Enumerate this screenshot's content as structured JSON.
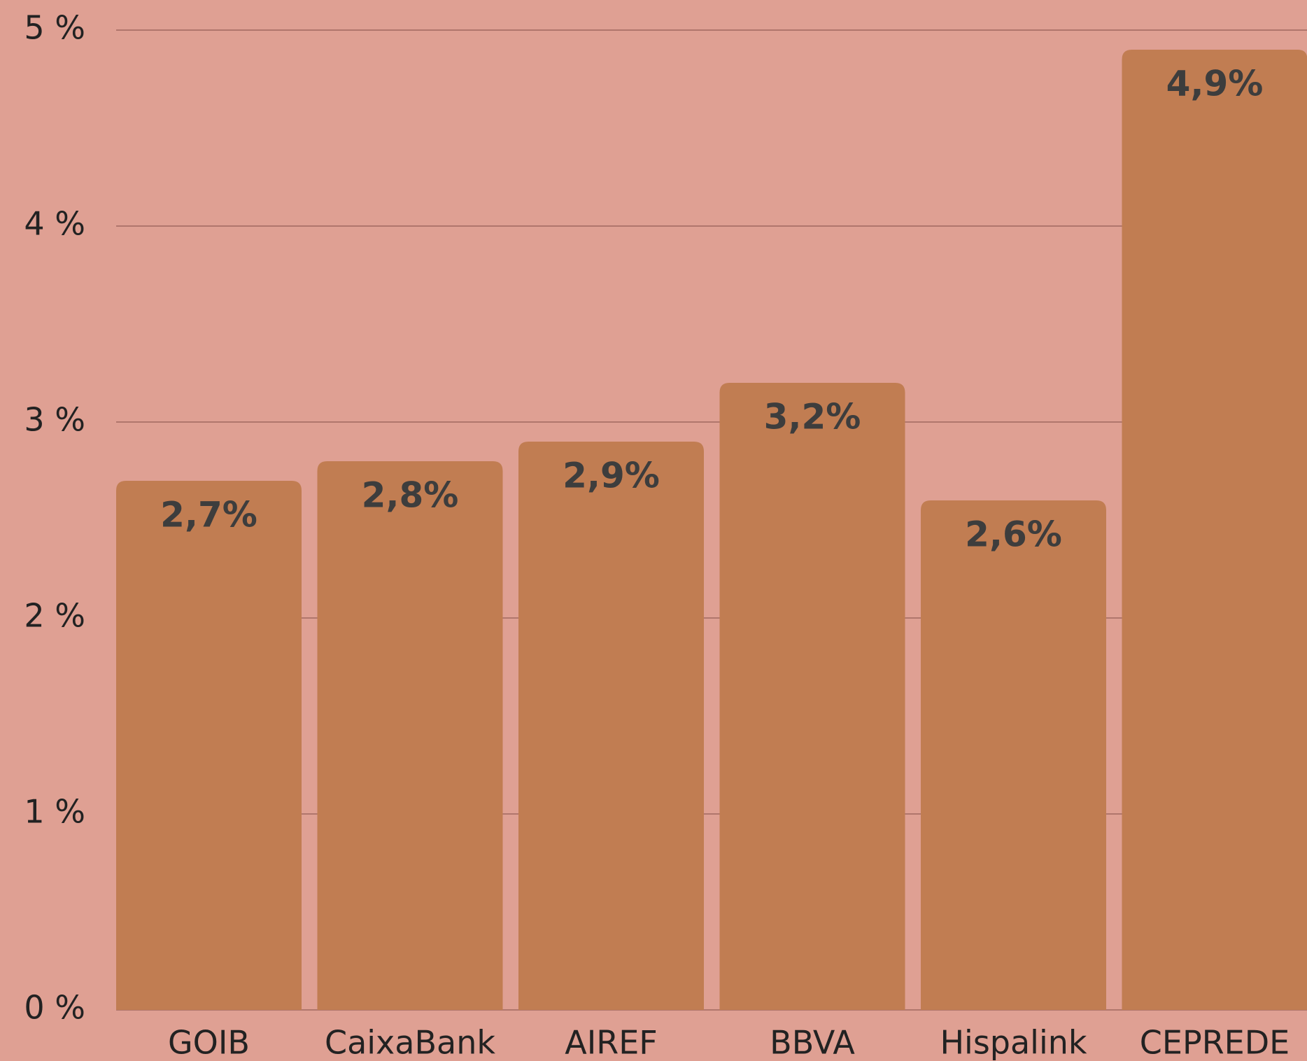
{
  "chart_data": {
    "type": "bar",
    "categories": [
      "GOIB",
      "CaixaBank",
      "AIREF",
      "BBVA",
      "Hispalink",
      "CEPREDE"
    ],
    "values": [
      2.7,
      2.8,
      2.9,
      3.2,
      2.6,
      4.9
    ],
    "value_labels": [
      "2,7%",
      "2,8%",
      "2,9%",
      "3,2%",
      "2,6%",
      "4,9%"
    ],
    "color": "#c17d52",
    "ylim": [
      0,
      5
    ],
    "yticks": [
      {
        "value": 0,
        "label": "0 %"
      },
      {
        "value": 1,
        "label": "1 %"
      },
      {
        "value": 2,
        "label": "2 %"
      },
      {
        "value": 3,
        "label": "3 %"
      },
      {
        "value": 4,
        "label": "4 %"
      },
      {
        "value": 5,
        "label": "5 %"
      }
    ],
    "grid": true
  }
}
